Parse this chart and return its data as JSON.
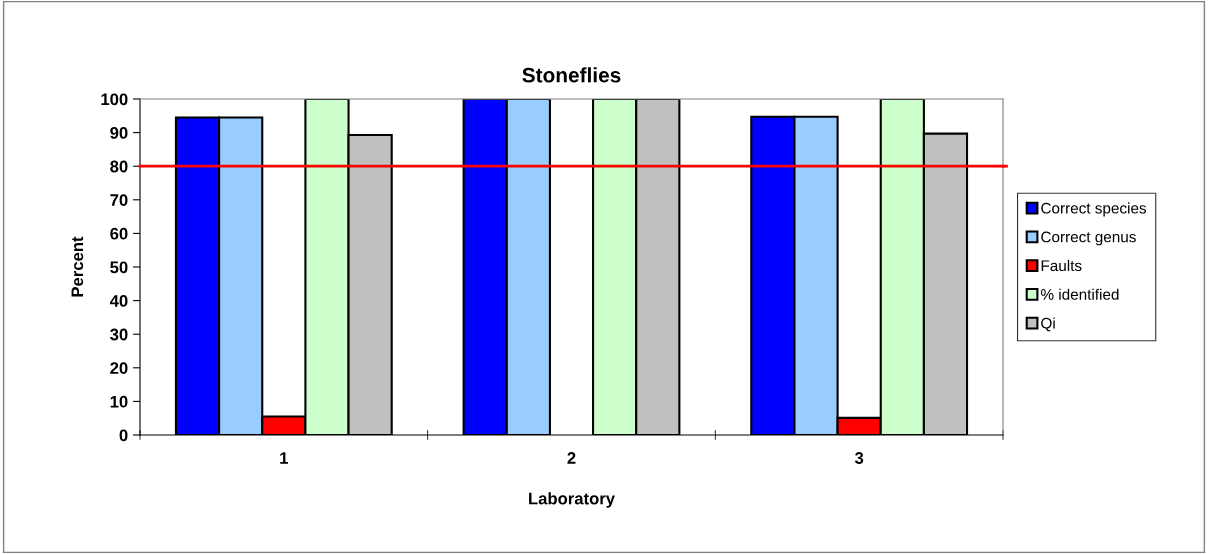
{
  "chart_data": {
    "type": "bar",
    "title": "Stoneflies",
    "xlabel": "Laboratory",
    "ylabel": "Percent",
    "categories": [
      "1",
      "2",
      "3"
    ],
    "series": [
      {
        "name": "Correct species",
        "color": "#0000ff",
        "values": [
          94.5,
          100,
          94.7
        ]
      },
      {
        "name": "Correct genus",
        "color": "#99ccff",
        "values": [
          94.5,
          100,
          94.7
        ]
      },
      {
        "name": "Faults",
        "color": "#ff0000",
        "values": [
          5.5,
          null,
          5.1
        ]
      },
      {
        "name": "% identified",
        "color": "#ccffcc",
        "values": [
          100,
          100,
          100
        ]
      },
      {
        "name": "Qi",
        "color": "#c0c0c0",
        "values": [
          89.3,
          100,
          89.7
        ]
      }
    ],
    "ylim": [
      0,
      100
    ],
    "yticks": [
      0,
      10,
      20,
      30,
      40,
      50,
      60,
      70,
      80,
      90,
      100
    ],
    "ref_lines": [
      {
        "axis": "y",
        "value": 80,
        "color": "#ff0000",
        "line_style": "solid"
      }
    ],
    "grid": false,
    "legend": "right"
  }
}
